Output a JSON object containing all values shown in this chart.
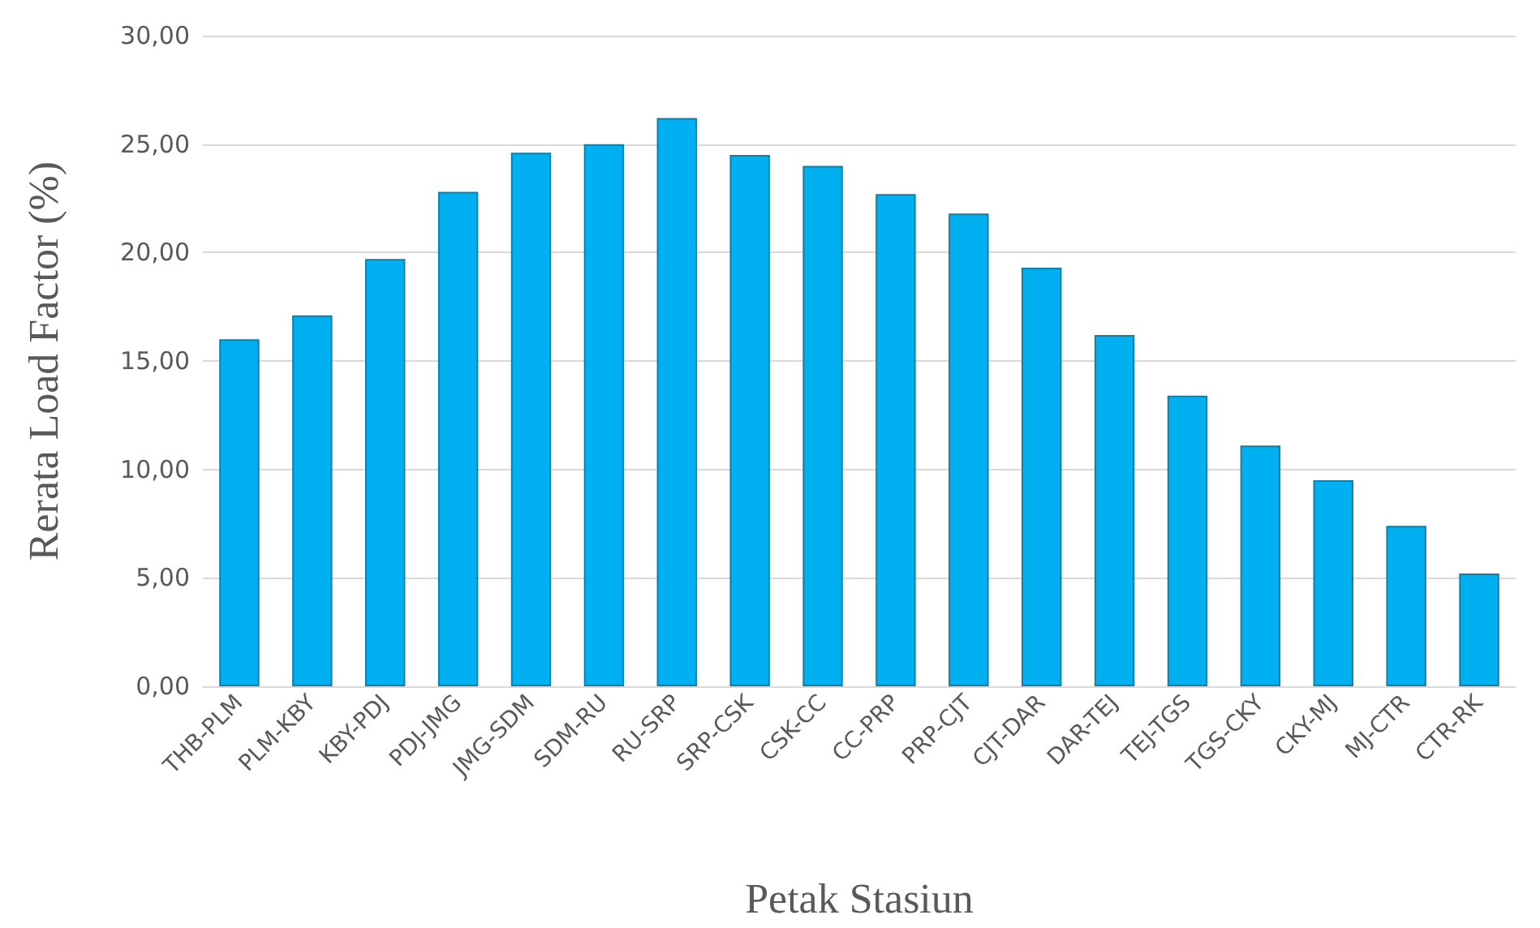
{
  "chart_data": {
    "type": "bar",
    "xlabel": "Petak Stasiun",
    "ylabel": "Rerata Load Factor (%)",
    "categories": [
      "THB-PLM",
      "PLM-KBY",
      "KBY-PDJ",
      "PDJ-JMG",
      "JMG-SDM",
      "SDM-RU",
      "RU-SRP",
      "SRP-CSK",
      "CSK-CC",
      "CC-PRP",
      "PRP-CJT",
      "CJT-DAR",
      "DAR-TEJ",
      "TEJ-TGS",
      "TGS-CKY",
      "CKY-MJ",
      "MJ-CTR",
      "CTR-RK"
    ],
    "values": [
      16.0,
      17.1,
      19.7,
      22.8,
      24.6,
      25.0,
      26.2,
      24.5,
      24.0,
      22.7,
      21.8,
      19.3,
      16.2,
      13.4,
      11.1,
      9.5,
      7.4,
      5.2
    ],
    "color": "#00b0f0",
    "ylim": [
      0,
      30
    ],
    "yticks": [
      {
        "value": 0,
        "label": "0,00"
      },
      {
        "value": 5,
        "label": "5,00"
      },
      {
        "value": 10,
        "label": "10,00"
      },
      {
        "value": 15,
        "label": "15,00"
      },
      {
        "value": 20,
        "label": "20,00"
      },
      {
        "value": 25,
        "label": "25,00"
      },
      {
        "value": 30,
        "label": "30,00"
      }
    ],
    "grid": "y"
  }
}
